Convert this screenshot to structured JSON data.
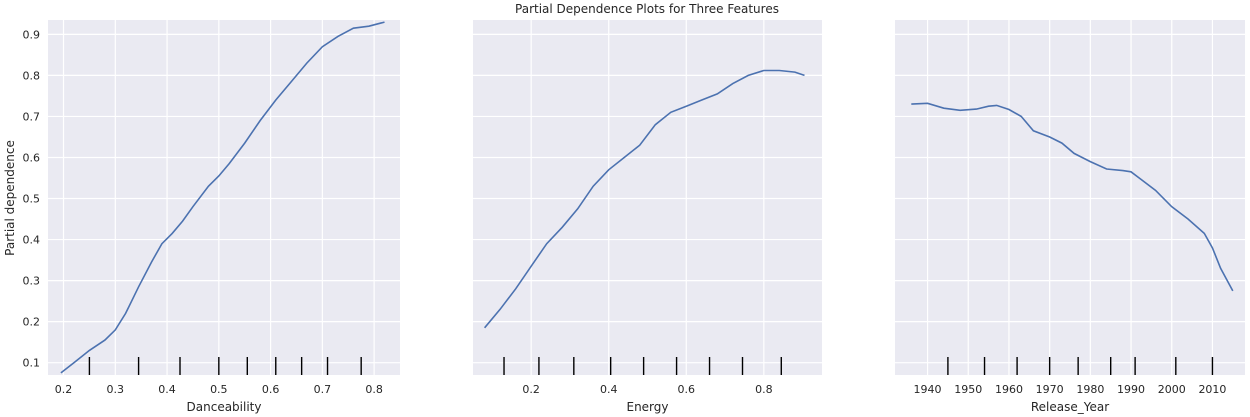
{
  "figure": {
    "title": "Partial Dependence Plots for Three Features",
    "ylabel": "Partial dependence"
  },
  "colors": {
    "background": "#eaeaf2",
    "grid": "#ffffff",
    "line": "#4c72b0",
    "rug": "#000000"
  },
  "chart_data": [
    {
      "type": "line",
      "xlabel": "Danceability",
      "ylabel": "Partial dependence",
      "xlim": [
        0.17,
        0.85
      ],
      "ylim": [
        0.07,
        0.935
      ],
      "xticks": [
        0.2,
        0.3,
        0.4,
        0.5,
        0.6,
        0.7,
        0.8
      ],
      "xtick_labels": [
        "0.2",
        "0.3",
        "0.4",
        "0.5",
        "0.6",
        "0.7",
        "0.8"
      ],
      "yticks": [
        0.1,
        0.2,
        0.3,
        0.4,
        0.5,
        0.6,
        0.7,
        0.8,
        0.9
      ],
      "ytick_labels": [
        "0.1",
        "0.2",
        "0.3",
        "0.4",
        "0.5",
        "0.6",
        "0.7",
        "0.8",
        "0.9"
      ],
      "grid": true,
      "x": [
        0.195,
        0.22,
        0.25,
        0.28,
        0.3,
        0.32,
        0.345,
        0.37,
        0.39,
        0.41,
        0.43,
        0.45,
        0.48,
        0.5,
        0.52,
        0.55,
        0.58,
        0.61,
        0.64,
        0.67,
        0.7,
        0.73,
        0.76,
        0.79,
        0.82
      ],
      "y": [
        0.075,
        0.1,
        0.13,
        0.155,
        0.18,
        0.22,
        0.285,
        0.345,
        0.39,
        0.415,
        0.445,
        0.48,
        0.53,
        0.555,
        0.585,
        0.635,
        0.69,
        0.74,
        0.785,
        0.83,
        0.87,
        0.895,
        0.915,
        0.92,
        0.93
      ],
      "deciles": [
        0.25,
        0.345,
        0.425,
        0.5,
        0.555,
        0.61,
        0.66,
        0.71,
        0.775
      ]
    },
    {
      "type": "line",
      "xlabel": "Energy",
      "ylabel": "",
      "xlim": [
        0.05,
        0.95
      ],
      "ylim": [
        0.07,
        0.935
      ],
      "xticks": [
        0.2,
        0.4,
        0.6,
        0.8
      ],
      "xtick_labels": [
        "0.2",
        "0.4",
        "0.6",
        "0.8"
      ],
      "yticks": [
        0.1,
        0.2,
        0.3,
        0.4,
        0.5,
        0.6,
        0.7,
        0.8,
        0.9
      ],
      "grid": true,
      "x": [
        0.08,
        0.12,
        0.16,
        0.2,
        0.24,
        0.28,
        0.32,
        0.36,
        0.4,
        0.44,
        0.48,
        0.52,
        0.56,
        0.6,
        0.64,
        0.68,
        0.72,
        0.76,
        0.8,
        0.84,
        0.88,
        0.905
      ],
      "y": [
        0.185,
        0.23,
        0.28,
        0.335,
        0.39,
        0.43,
        0.475,
        0.53,
        0.57,
        0.6,
        0.63,
        0.68,
        0.71,
        0.725,
        0.74,
        0.755,
        0.78,
        0.8,
        0.812,
        0.812,
        0.808,
        0.8
      ],
      "deciles": [
        0.13,
        0.22,
        0.31,
        0.405,
        0.49,
        0.575,
        0.66,
        0.745,
        0.845
      ]
    },
    {
      "type": "line",
      "xlabel": "Release_Year",
      "ylabel": "",
      "xlim": [
        1932,
        2018
      ],
      "ylim": [
        0.07,
        0.935
      ],
      "xticks": [
        1940,
        1950,
        1960,
        1970,
        1980,
        1990,
        2000,
        2010
      ],
      "xtick_labels": [
        "1940",
        "1950",
        "1960",
        "1970",
        "1980",
        "1990",
        "2000",
        "2010"
      ],
      "yticks": [
        0.1,
        0.2,
        0.3,
        0.4,
        0.5,
        0.6,
        0.7,
        0.8,
        0.9
      ],
      "grid": true,
      "x": [
        1936,
        1940,
        1944,
        1948,
        1952,
        1955,
        1957,
        1960,
        1963,
        1966,
        1970,
        1973,
        1976,
        1980,
        1984,
        1988,
        1990,
        1992,
        1996,
        2000,
        2004,
        2008,
        2010,
        2012,
        2015
      ],
      "y": [
        0.73,
        0.732,
        0.72,
        0.715,
        0.718,
        0.725,
        0.727,
        0.717,
        0.7,
        0.665,
        0.65,
        0.635,
        0.61,
        0.59,
        0.572,
        0.568,
        0.565,
        0.55,
        0.52,
        0.48,
        0.45,
        0.415,
        0.38,
        0.33,
        0.275
      ],
      "deciles": [
        1945,
        1954,
        1962,
        1970,
        1977,
        1985,
        1991,
        2001,
        2010
      ]
    }
  ]
}
